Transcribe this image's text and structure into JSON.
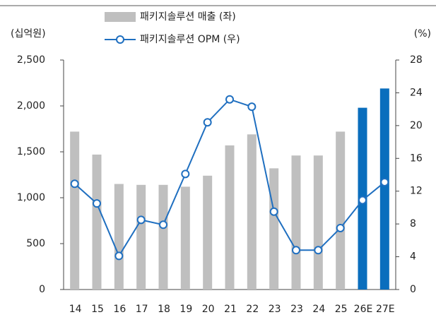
{
  "chart_data": {
    "type": "bar",
    "y_label": "(십억원)",
    "y2_label": "(%)",
    "categories": [
      "14",
      "15",
      "16",
      "17",
      "18",
      "19",
      "20",
      "21",
      "22",
      "23",
      "23",
      "24",
      "25",
      "26E",
      "27E"
    ],
    "series": [
      {
        "name": "패키지솔루션 매출 (좌)",
        "color": "#bfbfbf",
        "colors": [
          "#bfbfbf",
          "#bfbfbf",
          "#bfbfbf",
          "#bfbfbf",
          "#bfbfbf",
          "#bfbfbf",
          "#bfbfbf",
          "#bfbfbf",
          "#bfbfbf",
          "#bfbfbf",
          "#bfbfbf",
          "#bfbfbf",
          "#bfbfbf",
          "#0a6ebd",
          "#0a6ebd"
        ],
        "values": [
          1720,
          1470,
          1150,
          1140,
          1140,
          1120,
          1240,
          1570,
          1690,
          1320,
          1460,
          1460,
          1720,
          1980,
          2190
        ]
      },
      {
        "name": "패키지솔루션 OPM (우)",
        "color": "#1f6fc0",
        "axis": "y2",
        "values": [
          12.9,
          10.5,
          4.1,
          8.5,
          7.9,
          14.1,
          20.4,
          23.2,
          22.3,
          9.5,
          4.8,
          4.8,
          7.5,
          10.9,
          13.1
        ]
      }
    ],
    "ylim": [
      0,
      2500
    ],
    "yticks": [
      0,
      500,
      {
        "value": 1000,
        "label": "1,000"
      },
      {
        "value": 1500,
        "label": "1,500"
      },
      {
        "value": 2000,
        "label": "2,000"
      },
      {
        "value": 2500,
        "label": "2,500"
      }
    ],
    "y2lim": [
      0,
      28
    ],
    "y2ticks": [
      0,
      4,
      8,
      12,
      16,
      20,
      24,
      28
    ],
    "grid": false,
    "legend": "top"
  }
}
